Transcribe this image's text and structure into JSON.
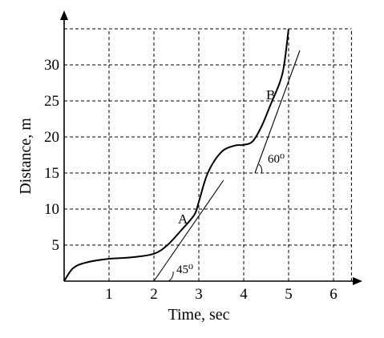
{
  "chart_data": {
    "type": "line",
    "xlabel": "Time, sec",
    "ylabel": "Distance, m",
    "x_ticks": [
      "1",
      "2",
      "3",
      "4",
      "5",
      "6"
    ],
    "y_ticks": [
      "5",
      "10",
      "15",
      "20",
      "25",
      "30"
    ],
    "xlim": [
      0,
      6.5
    ],
    "ylim": [
      0,
      35
    ],
    "grid": true,
    "series": [
      {
        "x": [
          0,
          0.2,
          0.5,
          1.0,
          1.5,
          2.0,
          2.3,
          2.6,
          2.9,
          3.0,
          3.2,
          3.5,
          3.8,
          4.0,
          4.2,
          4.4,
          4.6,
          4.8,
          4.9,
          5.0
        ],
        "y": [
          0,
          1.8,
          2.6,
          3.1,
          3.3,
          3.8,
          5.0,
          7.0,
          9.2,
          11.0,
          15.0,
          17.9,
          18.8,
          18.9,
          19.4,
          21.5,
          24.5,
          27.5,
          30.0,
          35.0
        ]
      }
    ],
    "tangents": [
      {
        "point_label": "A",
        "angle_label": "45⁰",
        "at": [
          2.75,
          7.6
        ],
        "from": [
          2.0,
          0.0
        ],
        "to": [
          3.55,
          14.0
        ]
      },
      {
        "point_label": "B",
        "angle_label": "60⁰",
        "at": [
          4.65,
          25.0
        ],
        "from": [
          4.25,
          15.0
        ],
        "to": [
          5.25,
          32.0
        ]
      }
    ]
  }
}
